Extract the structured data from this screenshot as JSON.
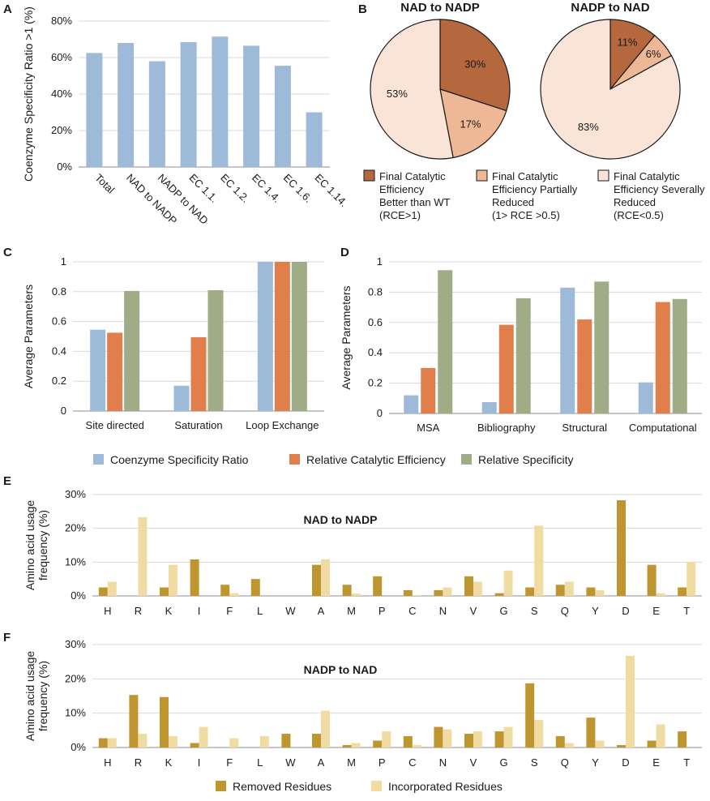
{
  "chart_data": [
    {
      "panel": "A",
      "type": "bar",
      "ylabel": "Coenzyme Specificity Ratio >1 (%)",
      "categories": [
        "Total",
        "NAD to NADP",
        "NADP to NAD",
        "EC 1.1.",
        "EC 1.2.",
        "EC 1.4.",
        "EC 1.6.",
        "EC 1.14."
      ],
      "values": [
        62.5,
        68,
        58,
        68.5,
        71.5,
        66.5,
        55.5,
        30
      ],
      "ylim": [
        0,
        80
      ],
      "yticks": [
        "0%",
        "20%",
        "40%",
        "60%",
        "80%"
      ],
      "grid": true,
      "color": "#9dbbd8"
    },
    {
      "panel": "B",
      "type": "pie",
      "pies": [
        {
          "title": "NAD to NADP",
          "values": [
            30,
            17,
            53
          ],
          "labels": [
            "30%",
            "17%",
            "53%"
          ]
        },
        {
          "title": "NADP to NAD",
          "values": [
            11,
            6,
            83
          ],
          "labels": [
            "11%",
            "6%",
            "83%"
          ]
        }
      ],
      "colors": [
        "#b5683e",
        "#eeb896",
        "#f9e4d7"
      ],
      "legend": [
        "Final Catalytic Efficiency Better than WT (RCE>1)",
        "Final Catalytic Efficiency Partially Reduced (1> RCE >0.5)",
        "Final Catalytic Efficiency Severally Reduced (RCE<0.5)"
      ],
      "legend_lines": [
        [
          "Final Catalytic",
          "Efficiency",
          "Better than WT",
          "(RCE>1)"
        ],
        [
          "Final Catalytic",
          "Efficiency Partially",
          "Reduced",
          "(1> RCE >0.5)"
        ],
        [
          "Final Catalytic",
          "Efficiency Severally",
          "Reduced",
          "(RCE<0.5)"
        ]
      ]
    },
    {
      "panel": "C",
      "type": "bar",
      "ylabel": "Average Parameters",
      "categories": [
        "Site directed",
        "Saturation",
        "Loop Exchange"
      ],
      "series": [
        {
          "name": "Coenzyme Specificity Ratio",
          "values": [
            0.545,
            0.17,
            1.0
          ]
        },
        {
          "name": "Relative Catalytic Efficiency",
          "values": [
            0.525,
            0.495,
            1.0
          ]
        },
        {
          "name": "Relative Specificity",
          "values": [
            0.805,
            0.81,
            1.0
          ]
        }
      ],
      "ylim": [
        0,
        1
      ],
      "yticks": [
        "0",
        "0.2",
        "0.4",
        "0.6",
        "0.8",
        "1"
      ],
      "grid": true
    },
    {
      "panel": "D",
      "type": "bar",
      "ylabel": "Average Parameters",
      "categories": [
        "MSA",
        "Bibliography",
        "Structural",
        "Computational"
      ],
      "series": [
        {
          "name": "Coenzyme Specificity Ratio",
          "values": [
            0.12,
            0.075,
            0.83,
            0.205
          ]
        },
        {
          "name": "Relative Catalytic Efficiency",
          "values": [
            0.3,
            0.585,
            0.62,
            0.735
          ]
        },
        {
          "name": "Relative Specificity",
          "values": [
            0.945,
            0.76,
            0.87,
            0.755
          ]
        }
      ],
      "ylim": [
        0,
        1
      ],
      "yticks": [
        "0",
        "0.2",
        "0.4",
        "0.6",
        "0.8",
        "1"
      ],
      "grid": true
    },
    {
      "panel": "E",
      "type": "bar",
      "title": "NAD to NADP",
      "ylabel": "Amino acid usage frequency (%)",
      "ylabel_lines": [
        "Amino acid usage",
        "frequency (%)"
      ],
      "categories": [
        "H",
        "R",
        "K",
        "I",
        "F",
        "L",
        "W",
        "A",
        "M",
        "P",
        "C",
        "N",
        "V",
        "G",
        "S",
        "Q",
        "Y",
        "D",
        "E",
        "T"
      ],
      "series": [
        {
          "name": "Removed Residues",
          "values": [
            2.5,
            0,
            2.5,
            10.8,
            3.3,
            5,
            0,
            9.2,
            3.3,
            5.8,
            1.7,
            1.7,
            5.8,
            0.8,
            2.5,
            3.3,
            2.5,
            28.3,
            9.2,
            2.5
          ]
        },
        {
          "name": "Incorporated Residues",
          "values": [
            4.2,
            23.3,
            9.2,
            0,
            0.8,
            0,
            0,
            10.8,
            0.7,
            0,
            0.2,
            2.5,
            4.2,
            7.5,
            20.8,
            4.2,
            1.7,
            0,
            0.8,
            10
          ]
        }
      ],
      "ylim": [
        0,
        30
      ],
      "yticks": [
        "0%",
        "10%",
        "20%",
        "30%"
      ],
      "grid": true
    },
    {
      "panel": "F",
      "type": "bar",
      "title": "NADP to NAD",
      "ylabel": "Amino acid usage frequency (%)",
      "ylabel_lines": [
        "Amino acid usage",
        "frequency (%)"
      ],
      "categories": [
        "H",
        "R",
        "K",
        "I",
        "F",
        "L",
        "W",
        "A",
        "M",
        "P",
        "C",
        "N",
        "V",
        "G",
        "S",
        "Q",
        "Y",
        "D",
        "E",
        "T"
      ],
      "series": [
        {
          "name": "Removed Residues",
          "values": [
            2.7,
            15.3,
            14.7,
            1.3,
            0,
            0,
            4,
            4,
            0.7,
            2,
            3.3,
            6,
            4,
            4.7,
            18.7,
            3.3,
            8.7,
            0.7,
            2,
            4.7
          ]
        },
        {
          "name": "Incorporated Residues",
          "values": [
            2.7,
            4,
            3.3,
            6,
            2.7,
            3.3,
            0,
            10.7,
            1.3,
            4.7,
            0.7,
            5.3,
            4.7,
            6,
            8,
            1.3,
            2,
            26.7,
            6.7,
            0
          ]
        }
      ],
      "ylim": [
        0,
        30
      ],
      "yticks": [
        "0%",
        "10%",
        "20%",
        "30%"
      ],
      "grid": true
    }
  ],
  "panel_letters": [
    "A",
    "B",
    "C",
    "D",
    "E",
    "F"
  ],
  "legend_params": [
    "Coenzyme Specificity Ratio",
    "Relative Catalytic Efficiency",
    "Relative Specificity"
  ],
  "legend_residues": [
    "Removed Residues",
    "Incorporated Residues"
  ],
  "colors": {
    "blue": "#9dbbd8",
    "orange": "#e07f4c",
    "green": "#9fac86",
    "removed": "#bf9530",
    "incorporated": "#f0dca3",
    "grid": "#d9d9d9",
    "axis": "#8c8c8c",
    "pie_edge": "#1a1a1a"
  }
}
